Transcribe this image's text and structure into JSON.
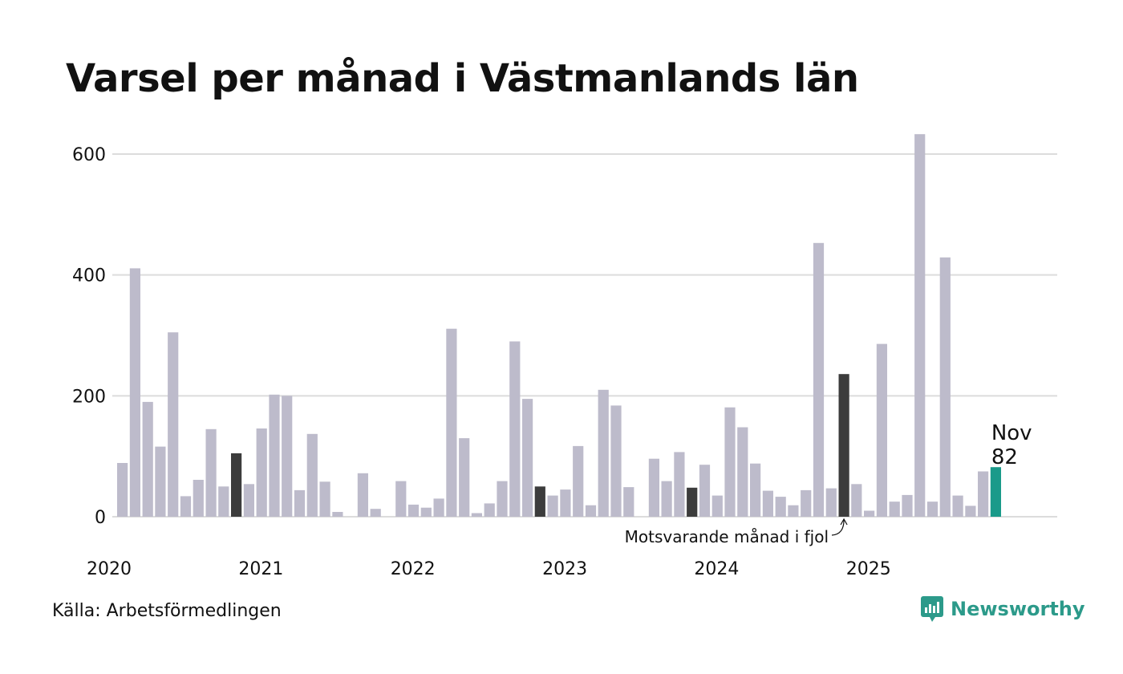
{
  "title": "Varsel per månad i Västmanlands län",
  "source": "Källa: Arbetsförmedlingen",
  "brand": {
    "name": "Newsworthy",
    "icon": "newsworthy-logo-icon"
  },
  "colors": {
    "bar": "#bdbbcb",
    "highlight": "#3c3c3c",
    "current": "#1a9a8a",
    "grid": "#dcdcdc"
  },
  "chart_data": {
    "type": "bar",
    "title": "Varsel per månad i Västmanlands län",
    "xlabel": "",
    "ylabel": "",
    "ylim": [
      0,
      640
    ],
    "yticks": [
      0,
      200,
      400,
      600
    ],
    "year_labels": [
      "2020",
      "2021",
      "2022",
      "2023",
      "2024",
      "2025"
    ],
    "grid": true,
    "values": [
      89,
      411,
      190,
      116,
      305,
      34,
      61,
      145,
      50,
      105,
      54,
      146,
      202,
      200,
      44,
      137,
      58,
      8,
      0,
      72,
      13,
      0,
      59,
      20,
      15,
      30,
      311,
      130,
      6,
      22,
      59,
      290,
      195,
      50,
      35,
      45,
      117,
      19,
      210,
      184,
      49,
      0,
      96,
      59,
      107,
      48,
      86,
      35,
      181,
      148,
      88,
      43,
      33,
      19,
      44,
      453,
      47,
      236,
      54,
      10,
      286,
      25,
      36,
      633,
      25,
      429,
      35,
      18,
      75,
      82
    ],
    "highlight_indices": [
      9,
      33,
      45,
      57
    ],
    "current_index": 69,
    "current_label": {
      "month": "Nov",
      "value": "82"
    },
    "annotation": "Motsvarande månad i fjol"
  }
}
